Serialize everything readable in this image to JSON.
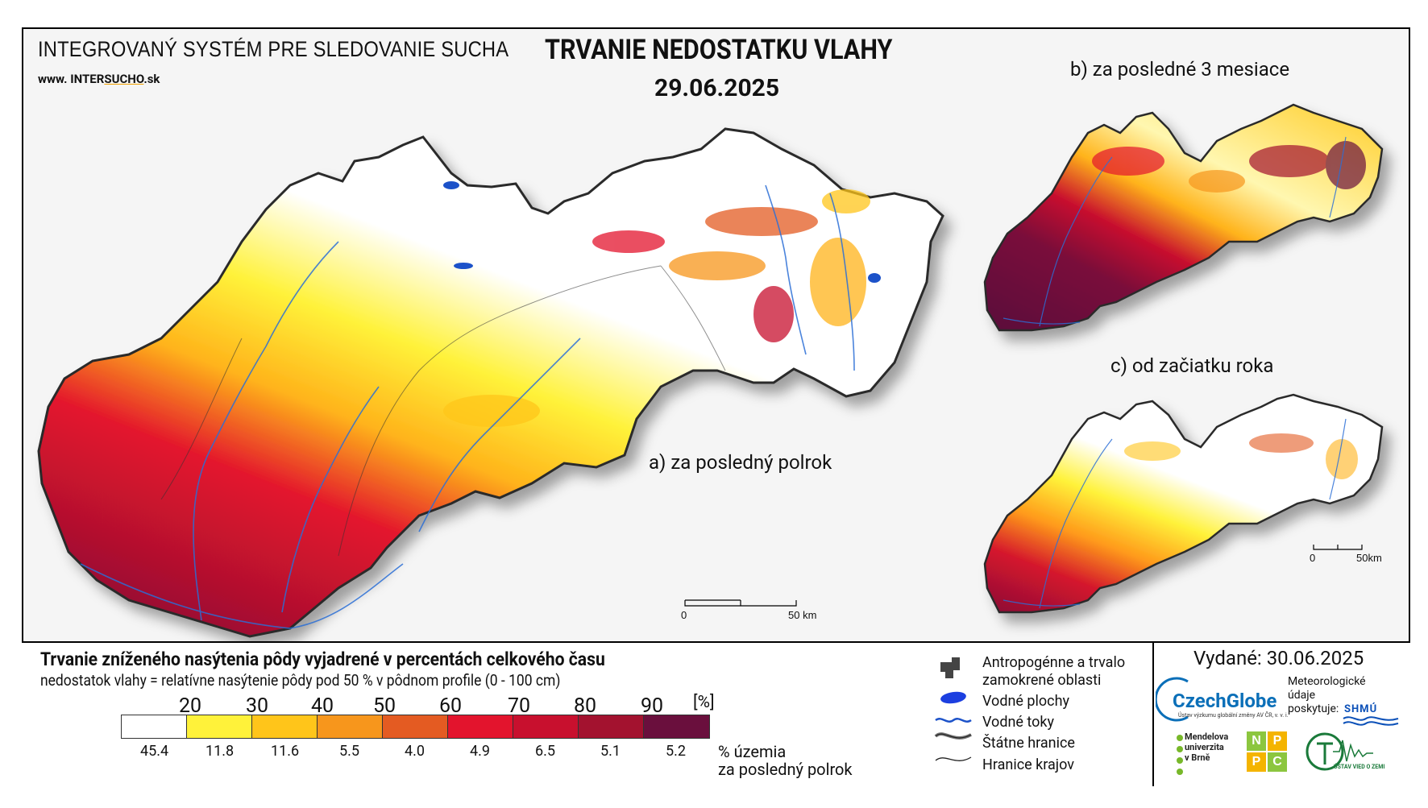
{
  "header": {
    "system_title": "INTEGROVANÝ SYSTÉM PRE SLEDOVANIE SUCHA",
    "site_prefix": "www. INTER",
    "site_mid": "SUCHO",
    "site_suffix": ".sk",
    "main_title": "TRVANIE NEDOSTATKU VLAHY",
    "date": "29.06.2025"
  },
  "maps": {
    "a_label": "a) za posledný polrok",
    "b_label": "b) za posledné 3 mesiace",
    "c_label": "c) od začiatku roka",
    "scale_a": {
      "zero": "0",
      "end": "50 km"
    },
    "scale_c": {
      "zero": "0",
      "end": "50km"
    }
  },
  "legend": {
    "title": "Trvanie zníženého nasýtenia pôdy vyjadrené v percentách celkového času",
    "subtitle": "nedostatok vlahy = relatívne nasýtenie pôdy pod 50 % v pôdnom profile (0 - 100 cm)",
    "thresholds": [
      "20",
      "30",
      "40",
      "50",
      "60",
      "70",
      "80",
      "90",
      "[%]"
    ],
    "classes": [
      {
        "color": "#ffffff",
        "pct": "45.4"
      },
      {
        "color": "#fff23a",
        "pct": "11.8"
      },
      {
        "color": "#ffc51a",
        "pct": "11.6"
      },
      {
        "color": "#f7961c",
        "pct": "5.5"
      },
      {
        "color": "#e45b22",
        "pct": "4.0"
      },
      {
        "color": "#e3142d",
        "pct": "4.9"
      },
      {
        "color": "#c8102e",
        "pct": "6.5"
      },
      {
        "color": "#a3122f",
        "pct": "5.1"
      },
      {
        "color": "#6a0f3d",
        "pct": "5.2"
      }
    ],
    "pct_note_1": "% územia",
    "pct_note_2": "za posledný polrok"
  },
  "map_legend": [
    {
      "icon": "anthropogenic-area-icon",
      "text": "Antropogénne a trvalo"
    },
    {
      "icon": "",
      "text": "zamokrené oblasti"
    },
    {
      "icon": "water-body-icon",
      "text": "Vodné plochy"
    },
    {
      "icon": "river-icon",
      "text": "Vodné toky"
    },
    {
      "icon": "state-border-icon",
      "text": "Štátne hranice"
    },
    {
      "icon": "region-border-icon",
      "text": "Hranice krajov"
    }
  ],
  "credits": {
    "issued": "Vydané: 30.06.2025",
    "czechglobe": "CzechGlobe",
    "czechglobe_sub": "Ústav výzkumu globální změny AV ČR, v. v. i.",
    "meteo_1": "Meteorologické",
    "meteo_2": "údaje",
    "meteo_3": "poskytuje:",
    "shmu": "SHMÚ",
    "mendel_1": "Mendelova",
    "mendel_2": "univerzita",
    "mendel_3": "v Brně",
    "npc": [
      "N",
      "P",
      "P",
      "C"
    ],
    "uvz": "ÚSTAV VIED O ZEMI"
  }
}
